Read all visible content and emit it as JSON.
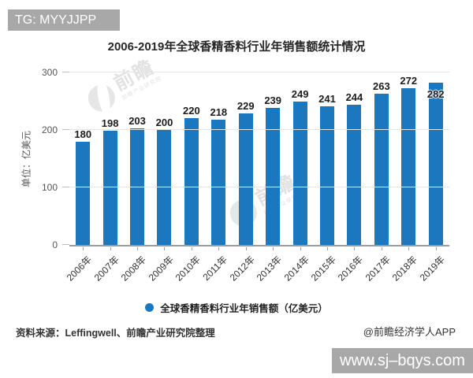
{
  "tg_badge": {
    "label": "TG: MYYJJPP"
  },
  "site_badge": {
    "label": "www.sj–bqys.com"
  },
  "watermark": {
    "brand": "前瞻",
    "sub": "前瞻产业研究院"
  },
  "footer": {
    "source": "资料来源：Leffingwell、前瞻产业研究院整理",
    "credit": "@前瞻经济学人APP"
  },
  "chart_data": {
    "type": "bar",
    "title": "2006-2019年全球香精香料行业年销售额统计情况",
    "categories": [
      "2006年",
      "2007年",
      "2008年",
      "2009年",
      "2010年",
      "2011年",
      "2012年",
      "2013年",
      "2014年",
      "2015年",
      "2016年",
      "2017年",
      "2018年",
      "2019年"
    ],
    "values": [
      180,
      198,
      203,
      200,
      220,
      218,
      229,
      239,
      249,
      241,
      244,
      263,
      272,
      282
    ],
    "ylabel": "单位：亿美元",
    "xlabel": "",
    "yticks": [
      0,
      100,
      200,
      300
    ],
    "ylim": [
      0,
      300
    ],
    "grid": true,
    "legend": "全球香精香料行业年销售额（亿美元）",
    "legend_position": "bottom",
    "bar_color": "#1b78be",
    "value_labels": true,
    "last_value_label_inside_bar": true
  }
}
